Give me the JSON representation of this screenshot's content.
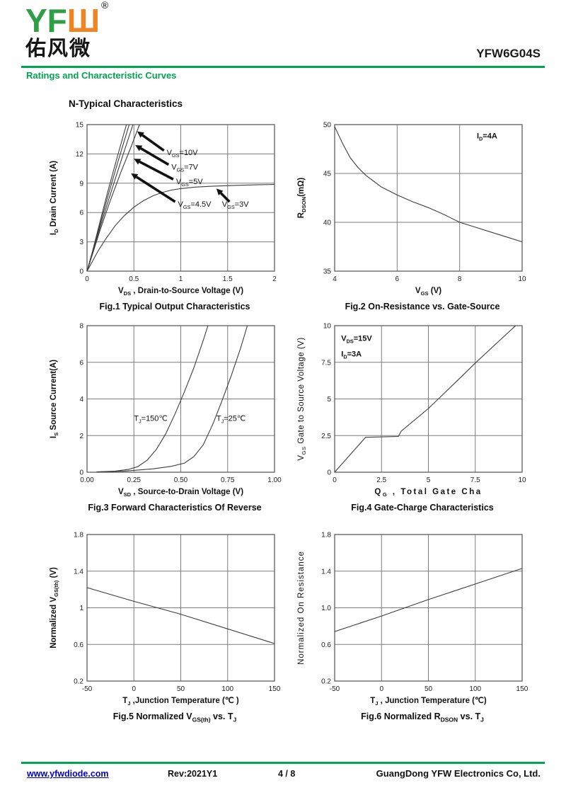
{
  "colors": {
    "logo_green": "#2f9e44",
    "logo_orange": "#ef8522",
    "accent_green": "#00a551",
    "link_blue": "#0000cc"
  },
  "header": {
    "logo_green": "YF",
    "logo_orange": "Ш",
    "logo_reg": "®",
    "logo_chinese": "佑风微",
    "product": "YFW6G04S",
    "section_title": "Ratings and Characteristic Curves"
  },
  "heading": "N-Typical Characteristics",
  "footer": {
    "website": "www.yfwdiode.com",
    "rev": "Rev:2021Y1",
    "page": "4 / 8",
    "company": "GuangDong YFW Electronics Co, Ltd."
  },
  "chart_data": [
    {
      "name": "fig1",
      "type": "line",
      "caption": [
        {
          "t": "Fig.1 Typical Output Characteristics"
        }
      ],
      "xlim": [
        0,
        2
      ],
      "ylim": [
        0,
        15
      ],
      "xticks": [
        [
          0,
          "0"
        ],
        [
          0.5,
          "0.5"
        ],
        [
          1,
          "1"
        ],
        [
          1.5,
          "1.5"
        ],
        [
          2,
          "2"
        ]
      ],
      "yticks": [
        [
          0,
          "0"
        ],
        [
          3,
          "3"
        ],
        [
          6,
          "6"
        ],
        [
          9,
          "9"
        ],
        [
          12,
          "12"
        ],
        [
          15,
          "15"
        ]
      ],
      "xlabel": [
        {
          "t": "V"
        },
        {
          "t": "DS",
          "sub": true
        },
        {
          "t": " , Drain-to-Source Voltage (V)"
        }
      ],
      "xlabel_bold": true,
      "ylabel": [
        {
          "t": "I"
        },
        {
          "t": "D",
          "sub": true
        },
        {
          "t": " Drain Current (A)"
        }
      ],
      "ylabel_bold": true,
      "series": [
        {
          "name": "VGS=10V",
          "points": [
            [
              0,
              0
            ],
            [
              0.06,
              2.1
            ],
            [
              0.14,
              5.1
            ],
            [
              0.22,
              8.1
            ],
            [
              0.32,
              11.6
            ],
            [
              0.42,
              15
            ]
          ]
        },
        {
          "name": "VGS=7V",
          "points": [
            [
              0,
              0
            ],
            [
              0.06,
              2.0
            ],
            [
              0.14,
              4.8
            ],
            [
              0.22,
              7.6
            ],
            [
              0.33,
              11.2
            ],
            [
              0.45,
              15
            ]
          ]
        },
        {
          "name": "VGS=5V",
          "points": [
            [
              0,
              0
            ],
            [
              0.06,
              1.9
            ],
            [
              0.14,
              4.5
            ],
            [
              0.24,
              7.6
            ],
            [
              0.36,
              11.2
            ],
            [
              0.49,
              15
            ]
          ]
        },
        {
          "name": "VGS=4.5V",
          "points": [
            [
              0,
              0
            ],
            [
              0.06,
              1.8
            ],
            [
              0.14,
              4.2
            ],
            [
              0.24,
              7.0
            ],
            [
              0.36,
              10.1
            ],
            [
              0.46,
              12.5
            ],
            [
              0.56,
              15
            ]
          ]
        },
        {
          "name": "VGS=3V",
          "points": [
            [
              0,
              0
            ],
            [
              0.06,
              1.05
            ],
            [
              0.12,
              2.1
            ],
            [
              0.2,
              3.3
            ],
            [
              0.3,
              4.65
            ],
            [
              0.4,
              5.7
            ],
            [
              0.5,
              6.55
            ],
            [
              0.6,
              7.2
            ],
            [
              0.7,
              7.7
            ],
            [
              0.8,
              8.05
            ],
            [
              0.9,
              8.3
            ],
            [
              1,
              8.45
            ],
            [
              1.15,
              8.6
            ],
            [
              1.35,
              8.7
            ],
            [
              1.6,
              8.78
            ],
            [
              1.8,
              8.83
            ],
            [
              2,
              8.88
            ]
          ]
        }
      ],
      "texts": [
        {
          "parts": [
            {
              "t": "V"
            },
            {
              "t": "GS",
              "sub": true
            },
            {
              "t": "=10V"
            }
          ],
          "x": 0.85,
          "y": 11.9,
          "arrow": [
            0.82,
            12.35,
            0.535,
            14.3
          ]
        },
        {
          "parts": [
            {
              "t": "V"
            },
            {
              "t": "GS",
              "sub": true
            },
            {
              "t": "=7V"
            }
          ],
          "x": 0.9,
          "y": 10.4,
          "arrow": [
            0.87,
            10.9,
            0.515,
            12.9
          ]
        },
        {
          "parts": [
            {
              "t": "V"
            },
            {
              "t": "GS",
              "sub": true
            },
            {
              "t": "=5V"
            }
          ],
          "x": 0.95,
          "y": 8.9,
          "arrow": [
            0.92,
            9.4,
            0.5,
            11.5
          ]
        },
        {
          "parts": [
            {
              "t": "V"
            },
            {
              "t": "GS",
              "sub": true
            },
            {
              "t": "=4.5V"
            }
          ],
          "x": 0.97,
          "y": 6.6,
          "arrow": [
            0.94,
            7.1,
            0.47,
            10.0
          ]
        },
        {
          "parts": [
            {
              "t": "V"
            },
            {
              "t": "GS",
              "sub": true
            },
            {
              "t": "=3V"
            }
          ],
          "x": 1.44,
          "y": 6.6,
          "arrow": [
            1.52,
            7.1,
            1.38,
            8.45
          ]
        }
      ]
    },
    {
      "name": "fig2",
      "type": "line",
      "caption": [
        {
          "t": "Fig.2 On-Resistance vs. Gate-Source"
        }
      ],
      "xlim": [
        4,
        10
      ],
      "ylim": [
        35,
        50
      ],
      "xticks": [
        [
          4,
          "4"
        ],
        [
          6,
          "6"
        ],
        [
          8,
          "8"
        ],
        [
          10,
          "10"
        ]
      ],
      "yticks": [
        [
          35,
          "35"
        ],
        [
          40,
          "40"
        ],
        [
          45,
          "45"
        ],
        [
          50,
          "50"
        ]
      ],
      "xlabel": [
        {
          "t": "V"
        },
        {
          "t": "GS",
          "sub": true
        },
        {
          "t": " (V)"
        }
      ],
      "xlabel_bold": true,
      "ylabel": [
        {
          "t": "R"
        },
        {
          "t": "DSON",
          "sub": true
        },
        {
          "t": "(mΩ)"
        }
      ],
      "ylabel_bold": true,
      "series": [
        {
          "name": "RDSON vs VGS at ID=4A",
          "points": [
            [
              4,
              49.8
            ],
            [
              4.25,
              48.1
            ],
            [
              4.5,
              46.6
            ],
            [
              4.75,
              45.6
            ],
            [
              5,
              44.8
            ],
            [
              5.25,
              44.2
            ],
            [
              5.5,
              43.6
            ],
            [
              6,
              42.8
            ],
            [
              6.5,
              42.1
            ],
            [
              7,
              41.5
            ],
            [
              7.5,
              40.8
            ],
            [
              8,
              40.0
            ],
            [
              8.5,
              39.5
            ],
            [
              9,
              39.0
            ],
            [
              9.5,
              38.5
            ],
            [
              10,
              38.0
            ]
          ]
        }
      ],
      "texts": [
        {
          "parts": [
            {
              "t": "I"
            },
            {
              "t": "D",
              "sub": true
            },
            {
              "t": "=4A"
            }
          ],
          "x": 8.55,
          "y": 48.6,
          "bold": true
        }
      ]
    },
    {
      "name": "fig3",
      "type": "line",
      "caption": [
        {
          "t": "Fig.3 Forward Characteristics Of Reverse"
        }
      ],
      "xlim": [
        0,
        1
      ],
      "ylim": [
        0,
        8
      ],
      "xticks": [
        [
          0,
          "0.00"
        ],
        [
          0.25,
          "0.25"
        ],
        [
          0.5,
          "0.50"
        ],
        [
          0.75,
          "0.75"
        ],
        [
          1,
          "1.00"
        ]
      ],
      "yticks": [
        [
          0,
          "0"
        ],
        [
          2,
          "2"
        ],
        [
          4,
          "4"
        ],
        [
          6,
          "6"
        ],
        [
          8,
          "8"
        ]
      ],
      "xlabel": [
        {
          "t": "V"
        },
        {
          "t": "SD",
          "sub": true
        },
        {
          "t": " , Source-to-Drain Voltage (V)"
        }
      ],
      "xlabel_bold": true,
      "ylabel": [
        {
          "t": "I"
        },
        {
          "t": "S",
          "sub": true
        },
        {
          "t": " Source Current(A)"
        }
      ],
      "ylabel_bold": true,
      "series": [
        {
          "name": "TJ=150C",
          "points": [
            [
              0.05,
              0.02
            ],
            [
              0.15,
              0.06
            ],
            [
              0.22,
              0.15
            ],
            [
              0.27,
              0.3
            ],
            [
              0.32,
              0.65
            ],
            [
              0.37,
              1.25
            ],
            [
              0.42,
              2.1
            ],
            [
              0.47,
              3.2
            ],
            [
              0.52,
              4.4
            ],
            [
              0.57,
              5.7
            ],
            [
              0.62,
              7.2
            ],
            [
              0.645,
              8
            ]
          ]
        },
        {
          "name": "TJ=25C",
          "points": [
            [
              0.05,
              0.01
            ],
            [
              0.2,
              0.06
            ],
            [
              0.35,
              0.18
            ],
            [
              0.45,
              0.32
            ],
            [
              0.52,
              0.5
            ],
            [
              0.57,
              0.85
            ],
            [
              0.62,
              1.5
            ],
            [
              0.67,
              2.6
            ],
            [
              0.72,
              3.9
            ],
            [
              0.77,
              5.3
            ],
            [
              0.82,
              6.8
            ],
            [
              0.855,
              8
            ]
          ]
        }
      ],
      "texts": [
        {
          "parts": [
            {
              "t": "T"
            },
            {
              "t": "J",
              "sub": true
            },
            {
              "t": "=150℃"
            }
          ],
          "x": 0.25,
          "y": 2.8
        },
        {
          "parts": [
            {
              "t": "T"
            },
            {
              "t": "J",
              "sub": true
            },
            {
              "t": "=25℃"
            }
          ],
          "x": 0.69,
          "y": 2.8
        }
      ]
    },
    {
      "name": "fig4",
      "type": "line",
      "caption": [
        {
          "t": "Fig.4 Gate-Charge Characteristics"
        }
      ],
      "xlim": [
        0,
        10
      ],
      "ylim": [
        0,
        10
      ],
      "xticks": [
        [
          0,
          "0"
        ],
        [
          2.5,
          "2.5"
        ],
        [
          5,
          "5"
        ],
        [
          7.5,
          "7.5"
        ],
        [
          10,
          "10"
        ]
      ],
      "yticks": [
        [
          0,
          "0"
        ],
        [
          2.5,
          "2.5"
        ],
        [
          5,
          "5"
        ],
        [
          7.5,
          "7.5"
        ],
        [
          10,
          "10"
        ]
      ],
      "xlabel": [
        {
          "t": "Q"
        },
        {
          "t": "G",
          "sub": true
        },
        {
          "t": " , Total Gate Cha"
        }
      ],
      "xlabel_bold": true,
      "xlabel_ls": 2.5,
      "ylabel": [
        {
          "t": "V"
        },
        {
          "t": "GS",
          "sub": true
        },
        {
          "t": "  Gate to Source Voltage (V)"
        }
      ],
      "ylabel_bold": false,
      "ylabel_ls": 0.5,
      "series": [
        {
          "name": "VGS vs QG",
          "points": [
            [
              0,
              0
            ],
            [
              1.65,
              2.38
            ],
            [
              3.4,
              2.44
            ],
            [
              3.55,
              2.8
            ],
            [
              5,
              4.35
            ],
            [
              6.5,
              6.2
            ],
            [
              7.5,
              7.45
            ],
            [
              9.65,
              10
            ]
          ]
        }
      ],
      "texts": [
        {
          "parts": [
            {
              "t": "V"
            },
            {
              "t": "DS",
              "sub": true
            },
            {
              "t": "=15V"
            }
          ],
          "x": 0.35,
          "y": 8.95,
          "bold": true
        },
        {
          "parts": [
            {
              "t": "I"
            },
            {
              "t": "D",
              "sub": true
            },
            {
              "t": "=3A"
            }
          ],
          "x": 0.35,
          "y": 7.9,
          "bold": true
        }
      ]
    },
    {
      "name": "fig5",
      "type": "line",
      "caption": [
        {
          "t": "Fig.5 Normalized V"
        },
        {
          "t": "GS(th)",
          "sub": true
        },
        {
          "t": " vs. T"
        },
        {
          "t": "J",
          "sub": true
        }
      ],
      "xlim": [
        -50,
        150
      ],
      "ylim": [
        0.2,
        1.8
      ],
      "xticks": [
        [
          -50,
          "-50"
        ],
        [
          0,
          "0"
        ],
        [
          50,
          "50"
        ],
        [
          100,
          "100"
        ],
        [
          150,
          "150"
        ]
      ],
      "yticks": [
        [
          0.2,
          "0.2"
        ],
        [
          0.6,
          "0.6"
        ],
        [
          1,
          "1"
        ],
        [
          1.4,
          "1.4"
        ],
        [
          1.8,
          "1.8"
        ]
      ],
      "xlabel": [
        {
          "t": "T"
        },
        {
          "t": "J",
          "sub": true
        },
        {
          "t": " ,Junction Temperature (℃ )"
        }
      ],
      "xlabel_bold": true,
      "ylabel": [
        {
          "t": "Normalized V"
        },
        {
          "t": "GS(th)",
          "sub": true
        },
        {
          "t": " (V)"
        }
      ],
      "ylabel_bold": true,
      "series": [
        {
          "name": "Normalized VGS(th)",
          "points": [
            [
              -50,
              1.22
            ],
            [
              0,
              1.07
            ],
            [
              50,
              0.93
            ],
            [
              100,
              0.77
            ],
            [
              150,
              0.61
            ]
          ]
        }
      ],
      "texts": []
    },
    {
      "name": "fig6",
      "type": "line",
      "caption": [
        {
          "t": "Fig.6 Normalized R"
        },
        {
          "t": "DSON",
          "sub": true
        },
        {
          "t": " vs. T"
        },
        {
          "t": "J",
          "sub": true
        }
      ],
      "xlim": [
        -50,
        150
      ],
      "ylim": [
        0.2,
        1.8
      ],
      "xticks": [
        [
          -50,
          "-50"
        ],
        [
          0,
          "0"
        ],
        [
          50,
          "50"
        ],
        [
          100,
          "100"
        ],
        [
          150,
          "150"
        ]
      ],
      "yticks": [
        [
          0.2,
          "0.2"
        ],
        [
          0.6,
          "0.6"
        ],
        [
          1,
          "1.0"
        ],
        [
          1.4,
          "1.4"
        ],
        [
          1.8,
          "1.8"
        ]
      ],
      "xlabel": [
        {
          "t": "T"
        },
        {
          "t": "J",
          "sub": true
        },
        {
          "t": " , Junction Temperature (℃)"
        }
      ],
      "xlabel_bold": true,
      "ylabel": [
        {
          "t": "Normalized On Resistance"
        }
      ],
      "ylabel_bold": false,
      "ylabel_ls": 1,
      "series": [
        {
          "name": "Normalized RDSON",
          "points": [
            [
              -50,
              0.74
            ],
            [
              0,
              0.91
            ],
            [
              50,
              1.09
            ],
            [
              100,
              1.26
            ],
            [
              150,
              1.43
            ]
          ]
        }
      ],
      "texts": []
    }
  ]
}
